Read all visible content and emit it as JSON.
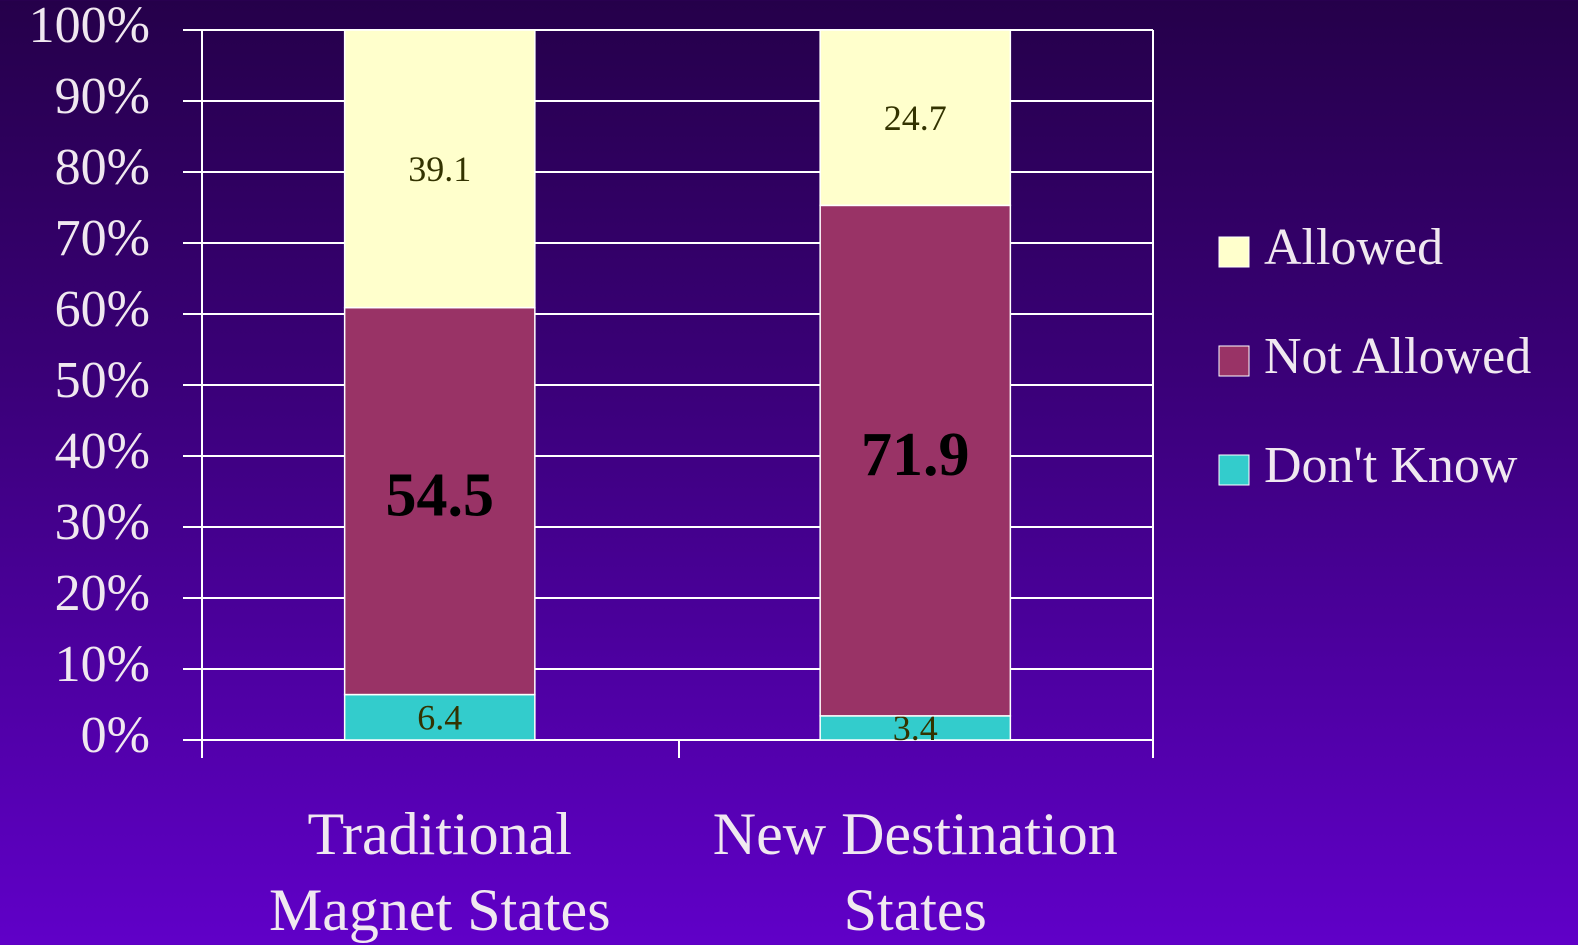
{
  "chart_data": {
    "type": "stacked_bar",
    "categories": [
      "Traditional Magnet States",
      "New Destination States"
    ],
    "series": [
      {
        "name": "Don't Know",
        "color": "#33cccc",
        "values": [
          6.4,
          3.4
        ]
      },
      {
        "name": "Not Allowed",
        "color": "#993366",
        "values": [
          54.5,
          71.9
        ]
      },
      {
        "name": "Allowed",
        "color": "#ffffcc",
        "values": [
          39.1,
          24.7
        ]
      }
    ],
    "ylim": [
      0,
      100
    ],
    "yticks": [
      {
        "value": 0,
        "label": "0%"
      },
      {
        "value": 10,
        "label": "10%"
      },
      {
        "value": 20,
        "label": "20%"
      },
      {
        "value": 30,
        "label": "30%"
      },
      {
        "value": 40,
        "label": "40%"
      },
      {
        "value": 50,
        "label": "50%"
      },
      {
        "value": 60,
        "label": "60%"
      },
      {
        "value": 70,
        "label": "70%"
      },
      {
        "value": 80,
        "label": "80%"
      },
      {
        "value": 90,
        "label": "90%"
      },
      {
        "value": 100,
        "label": "100%"
      }
    ],
    "grid": true,
    "legend": "right"
  }
}
